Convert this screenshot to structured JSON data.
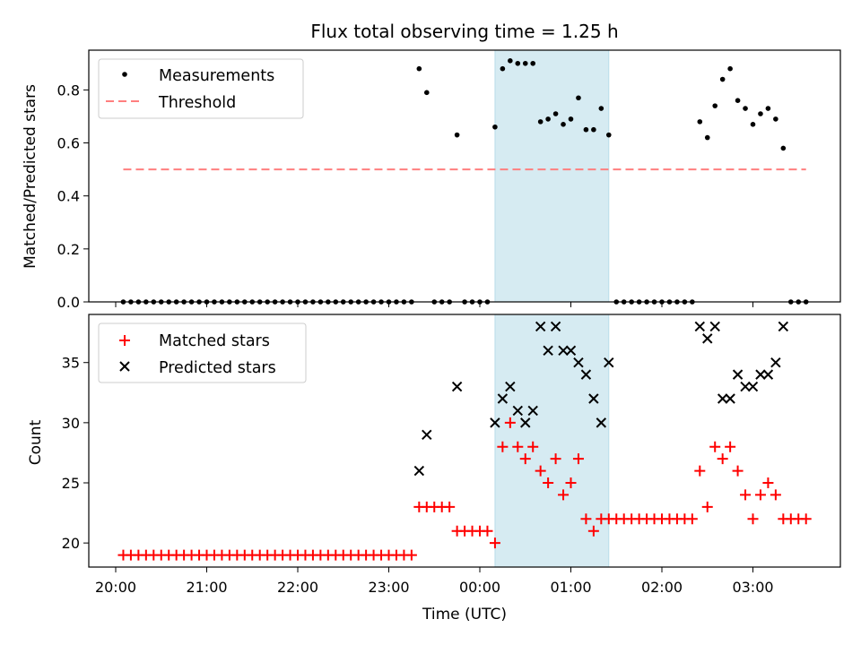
{
  "chart_data": [
    {
      "type": "scatter",
      "title": "Flux total observing time = 1.25 h",
      "xlabel": "",
      "ylabel": "Matched/Predicted stars",
      "ylim": [
        0,
        0.95
      ],
      "yticks": [
        "0.0",
        "0.2",
        "0.4",
        "0.6",
        "0.8"
      ],
      "grid": false,
      "legend_position": "top-left",
      "shaded_span": [
        "00:10",
        "01:25"
      ],
      "series": [
        {
          "name": "Measurements",
          "marker": "dot",
          "color": "#000000",
          "x": [
            "20:05",
            "20:10",
            "20:15",
            "20:20",
            "20:25",
            "20:30",
            "20:35",
            "20:40",
            "20:45",
            "20:50",
            "20:55",
            "21:00",
            "21:05",
            "21:10",
            "21:15",
            "21:20",
            "21:25",
            "21:30",
            "21:35",
            "21:40",
            "21:45",
            "21:50",
            "21:55",
            "22:00",
            "22:05",
            "22:10",
            "22:15",
            "22:20",
            "22:25",
            "22:30",
            "22:35",
            "22:40",
            "22:45",
            "22:50",
            "22:55",
            "23:00",
            "23:05",
            "23:10",
            "23:15",
            "23:20",
            "23:25",
            "23:30",
            "23:35",
            "23:40",
            "23:45",
            "23:50",
            "23:55",
            "00:00",
            "00:05",
            "00:10",
            "00:15",
            "00:20",
            "00:25",
            "00:30",
            "00:35",
            "00:40",
            "00:45",
            "00:50",
            "00:55",
            "01:00",
            "01:05",
            "01:10",
            "01:15",
            "01:20",
            "01:25",
            "01:30",
            "01:35",
            "01:40",
            "01:45",
            "01:50",
            "01:55",
            "02:00",
            "02:05",
            "02:10",
            "02:15",
            "02:20",
            "02:25",
            "02:30",
            "02:35",
            "02:40",
            "02:45",
            "02:50",
            "02:55",
            "03:00",
            "03:05",
            "03:10",
            "03:15",
            "03:20",
            "03:25",
            "03:30",
            "03:35"
          ],
          "y": [
            0,
            0,
            0,
            0,
            0,
            0,
            0,
            0,
            0,
            0,
            0,
            0,
            0,
            0,
            0,
            0,
            0,
            0,
            0,
            0,
            0,
            0,
            0,
            0,
            0,
            0,
            0,
            0,
            0,
            0,
            0,
            0,
            0,
            0,
            0,
            0,
            0,
            0,
            0,
            0.88,
            0.79,
            0,
            0,
            0,
            0.63,
            0,
            0,
            0,
            0,
            0.66,
            0.88,
            0.91,
            0.9,
            0.9,
            0.9,
            0.68,
            0.69,
            0.71,
            0.67,
            0.69,
            0.77,
            0.65,
            0.65,
            0.73,
            0.63,
            0,
            0,
            0,
            0,
            0,
            0,
            0,
            0,
            0,
            0,
            0,
            0.68,
            0.62,
            0.74,
            0.84,
            0.88,
            0.76,
            0.73,
            0.67,
            0.71,
            0.73,
            0.69,
            0.58,
            0,
            0,
            0
          ]
        },
        {
          "name": "Threshold",
          "marker": "dashed-line",
          "color": "#ff7f7f",
          "x": [
            "20:05",
            "03:35"
          ],
          "y": [
            0.5,
            0.5
          ]
        }
      ]
    },
    {
      "type": "scatter",
      "title": "",
      "xlabel": "Time (UTC)",
      "ylabel": "Count",
      "ylim": [
        18,
        39
      ],
      "yticks": [
        "20",
        "25",
        "30",
        "35"
      ],
      "xticks": [
        "20:00",
        "21:00",
        "22:00",
        "23:00",
        "00:00",
        "01:00",
        "02:00",
        "03:00"
      ],
      "grid": false,
      "legend_position": "top-left",
      "shaded_span": [
        "00:10",
        "01:25"
      ],
      "series": [
        {
          "name": "Matched stars",
          "marker": "plus",
          "color": "#ff0000",
          "x": [
            "20:05",
            "20:10",
            "20:15",
            "20:20",
            "20:25",
            "20:30",
            "20:35",
            "20:40",
            "20:45",
            "20:50",
            "20:55",
            "21:00",
            "21:05",
            "21:10",
            "21:15",
            "21:20",
            "21:25",
            "21:30",
            "21:35",
            "21:40",
            "21:45",
            "21:50",
            "21:55",
            "22:00",
            "22:05",
            "22:10",
            "22:15",
            "22:20",
            "22:25",
            "22:30",
            "22:35",
            "22:40",
            "22:45",
            "22:50",
            "22:55",
            "23:00",
            "23:05",
            "23:10",
            "23:15",
            "23:20",
            "23:25",
            "23:30",
            "23:35",
            "23:40",
            "23:45",
            "23:50",
            "23:55",
            "00:00",
            "00:05",
            "00:10",
            "00:15",
            "00:20",
            "00:25",
            "00:30",
            "00:35",
            "00:40",
            "00:45",
            "00:50",
            "00:55",
            "01:00",
            "01:05",
            "01:10",
            "01:15",
            "01:20",
            "01:25",
            "01:30",
            "01:35",
            "01:40",
            "01:45",
            "01:50",
            "01:55",
            "02:00",
            "02:05",
            "02:10",
            "02:15",
            "02:20",
            "02:25",
            "02:30",
            "02:35",
            "02:40",
            "02:45",
            "02:50",
            "02:55",
            "03:00",
            "03:05",
            "03:10",
            "03:15",
            "03:20",
            "03:25",
            "03:30",
            "03:35"
          ],
          "y": [
            19,
            19,
            19,
            19,
            19,
            19,
            19,
            19,
            19,
            19,
            19,
            19,
            19,
            19,
            19,
            19,
            19,
            19,
            19,
            19,
            19,
            19,
            19,
            19,
            19,
            19,
            19,
            19,
            19,
            19,
            19,
            19,
            19,
            19,
            19,
            19,
            19,
            19,
            19,
            23,
            23,
            23,
            23,
            23,
            21,
            21,
            21,
            21,
            21,
            20,
            28,
            30,
            28,
            27,
            28,
            26,
            25,
            27,
            24,
            25,
            27,
            22,
            21,
            22,
            22,
            22,
            22,
            22,
            22,
            22,
            22,
            22,
            22,
            22,
            22,
            22,
            26,
            23,
            28,
            27,
            28,
            26,
            24,
            22,
            24,
            25,
            24,
            22,
            22,
            22,
            22
          ]
        },
        {
          "name": "Predicted stars",
          "marker": "x",
          "color": "#000000",
          "x": [
            "23:20",
            "23:25",
            "23:45",
            "00:10",
            "00:15",
            "00:20",
            "00:25",
            "00:30",
            "00:35",
            "00:40",
            "00:45",
            "00:50",
            "00:55",
            "01:00",
            "01:05",
            "01:10",
            "01:15",
            "01:20",
            "01:25",
            "02:25",
            "02:30",
            "02:35",
            "02:40",
            "02:45",
            "02:50",
            "02:55",
            "03:00",
            "03:05",
            "03:10",
            "03:15",
            "03:20"
          ],
          "y": [
            26,
            29,
            33,
            30,
            32,
            33,
            31,
            30,
            31,
            38,
            36,
            38,
            36,
            36,
            35,
            34,
            32,
            30,
            35,
            38,
            37,
            38,
            32,
            32,
            34,
            33,
            33,
            34,
            34,
            35,
            38
          ]
        }
      ]
    }
  ]
}
